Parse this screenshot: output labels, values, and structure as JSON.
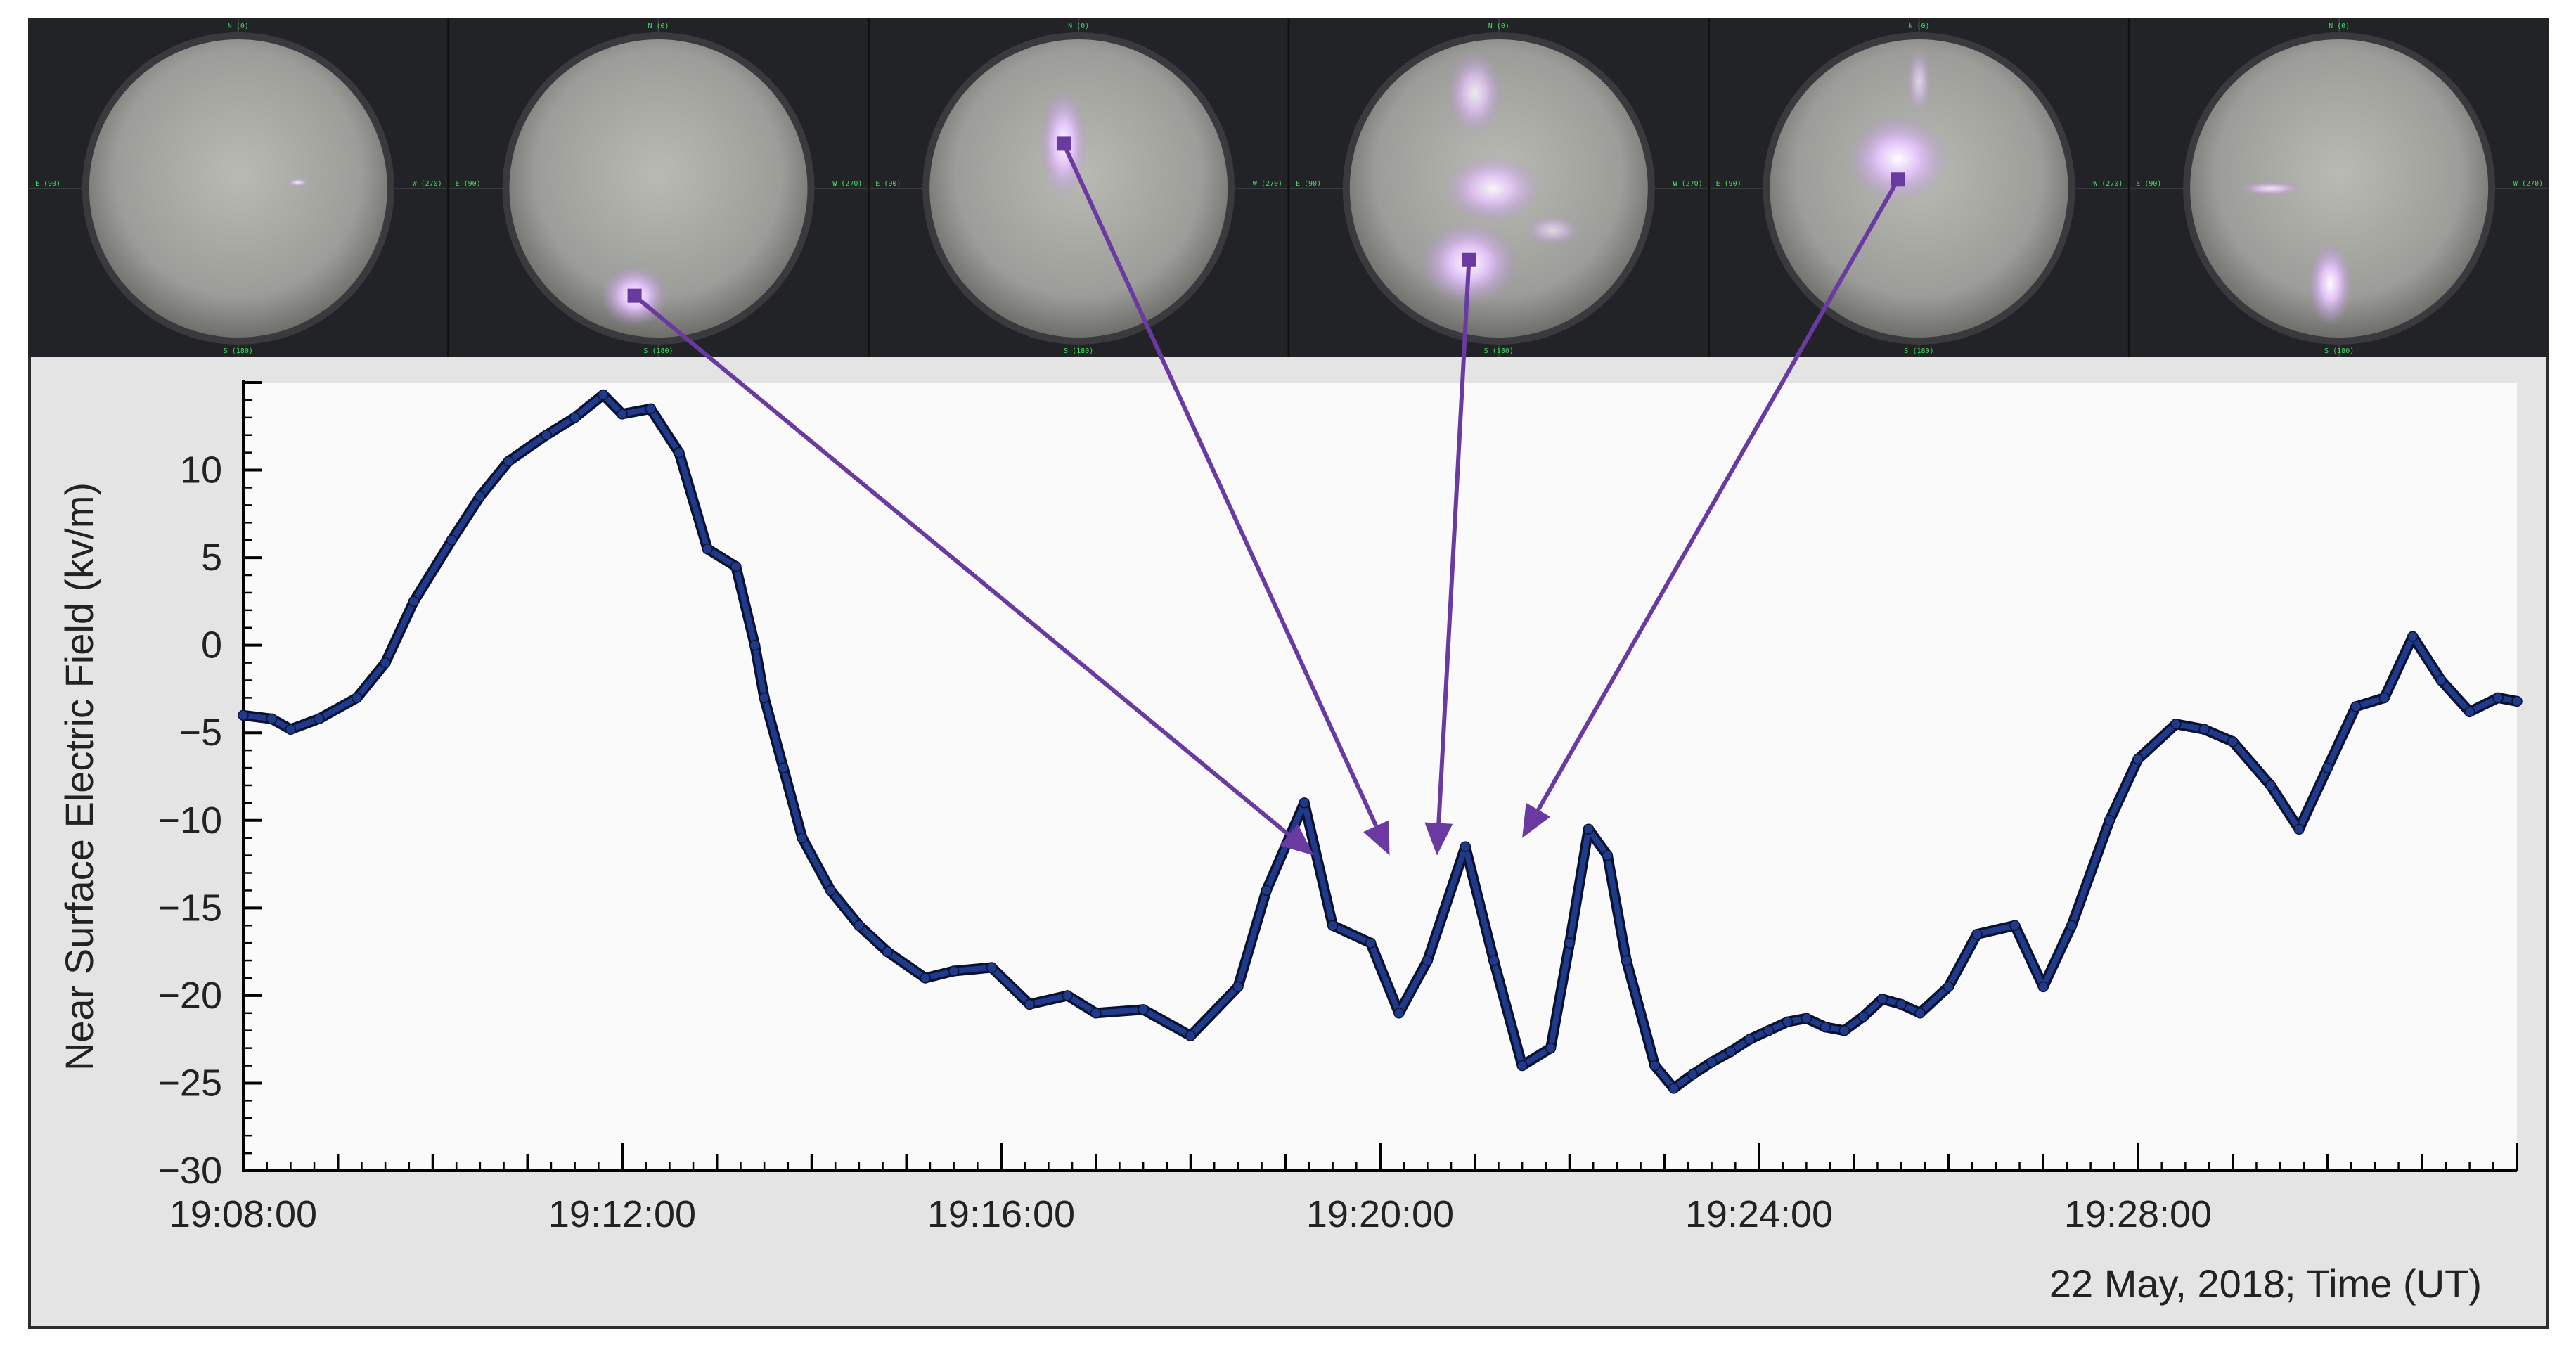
{
  "figure": {
    "date_label": "22 May, 2018; Time (UT)"
  },
  "camera_frames": [
    {
      "north": "N (0)",
      "east": "E (90)",
      "west": "W (270)",
      "south": "S (180)"
    },
    {
      "north": "N (0)",
      "east": "E (90)",
      "west": "W (270)",
      "south": "S (180)"
    },
    {
      "north": "N (0)",
      "east": "E (90)",
      "west": "W (270)",
      "south": "S (180)"
    },
    {
      "north": "N (0)",
      "east": "E (90)",
      "west": "W (270)",
      "south": "S (180)"
    },
    {
      "north": "N (0)",
      "east": "E (90)",
      "west": "W (270)",
      "south": "S (180)"
    },
    {
      "north": "N (0)",
      "east": "E (90)",
      "west": "W (270)",
      "south": "S (180)"
    }
  ],
  "colors": {
    "series": "#1f3a8a",
    "series_outline": "#0b1230",
    "arrow": "#6a3aa0",
    "panel_background": "#e4e4e4",
    "plot_background": "#fafafa",
    "sky_glow": "#e8c6ff"
  },
  "chart_data": {
    "type": "line",
    "ylabel": "Near Surface Electric Field (kv/m)",
    "xlabel": "22 May, 2018; Time (UT)",
    "x_unit": "minutes after 19:08:00 UT",
    "xlim": [
      0,
      24
    ],
    "ylim": [
      -30,
      15
    ],
    "grid": false,
    "legend": null,
    "x_tick_labels": [
      "19:08:00",
      "19:12:00",
      "19:16:00",
      "19:20:00",
      "19:24:00",
      "19:28:00"
    ],
    "y_ticks": [
      -30,
      -25,
      -20,
      -15,
      -10,
      -5,
      0,
      5,
      10
    ],
    "y_tick_labels": [
      "−30",
      "−25",
      "−20",
      "−15",
      "−10",
      "−5",
      "0",
      "5",
      "10"
    ],
    "series": [
      {
        "name": "",
        "x": [
          0,
          0.3,
          0.5,
          0.8,
          1.2,
          1.5,
          1.8,
          2.2,
          2.5,
          2.8,
          3.2,
          3.5,
          3.8,
          4.0,
          4.3,
          4.6,
          4.9,
          5.2,
          5.4,
          5.5,
          5.7,
          5.9,
          6.2,
          6.5,
          6.8,
          7.2,
          7.5,
          7.9,
          8.3,
          8.7,
          9.0,
          9.5,
          10.0,
          10.5,
          10.8,
          11.2,
          11.5,
          11.9,
          12.2,
          12.5,
          12.9,
          13.2,
          13.5,
          13.8,
          14.0,
          14.2,
          14.4,
          14.6,
          14.9,
          15.1,
          15.3,
          15.5,
          15.7,
          15.9,
          16.1,
          16.3,
          16.5,
          16.7,
          16.9,
          17.1,
          17.3,
          17.5,
          17.7,
          18.0,
          18.3,
          18.7,
          19.0,
          19.3,
          19.7,
          20.0,
          20.4,
          20.7,
          21.0,
          21.4,
          21.7,
          22.0,
          22.3,
          22.6,
          22.9,
          23.2,
          23.5,
          23.8,
          24.0
        ],
        "y": [
          -4.0,
          -4.2,
          -4.8,
          -4.2,
          -3.0,
          -1.0,
          2.5,
          6.0,
          8.5,
          10.5,
          12.0,
          13.0,
          14.3,
          13.2,
          13.5,
          11.0,
          5.5,
          4.5,
          0.0,
          -3.0,
          -7.0,
          -11.0,
          -14.0,
          -16.0,
          -17.5,
          -19.0,
          -18.6,
          -18.4,
          -20.5,
          -20.0,
          -21.0,
          -20.8,
          -22.3,
          -19.5,
          -14.0,
          -9.0,
          -16.0,
          -17.0,
          -21.0,
          -18.0,
          -11.5,
          -18.0,
          -24.0,
          -23.0,
          -17.0,
          -10.5,
          -12.0,
          -18.0,
          -24.0,
          -25.3,
          -24.5,
          -23.8,
          -23.2,
          -22.5,
          -22.0,
          -21.5,
          -21.3,
          -21.8,
          -22.0,
          -21.2,
          -20.2,
          -20.5,
          -21.0,
          -19.5,
          -16.5,
          -16.0,
          -19.5,
          -16.0,
          -10.0,
          -6.5,
          -4.5,
          -4.8,
          -5.5,
          -8.0,
          -10.5,
          -7.0,
          -3.5,
          -3.0,
          0.5,
          -2.0,
          -3.8,
          -3.0,
          -3.2
        ]
      }
    ],
    "annotation_arrows": [
      {
        "from_camera_frame": 2,
        "to": {
          "x": 11.3,
          "y": -12.0
        }
      },
      {
        "from_camera_frame": 3,
        "to": {
          "x": 12.1,
          "y": -12.0
        }
      },
      {
        "from_camera_frame": 4,
        "to": {
          "x": 12.6,
          "y": -12.0
        }
      },
      {
        "from_camera_frame": 5,
        "to": {
          "x": 13.5,
          "y": -11.0
        }
      }
    ]
  }
}
